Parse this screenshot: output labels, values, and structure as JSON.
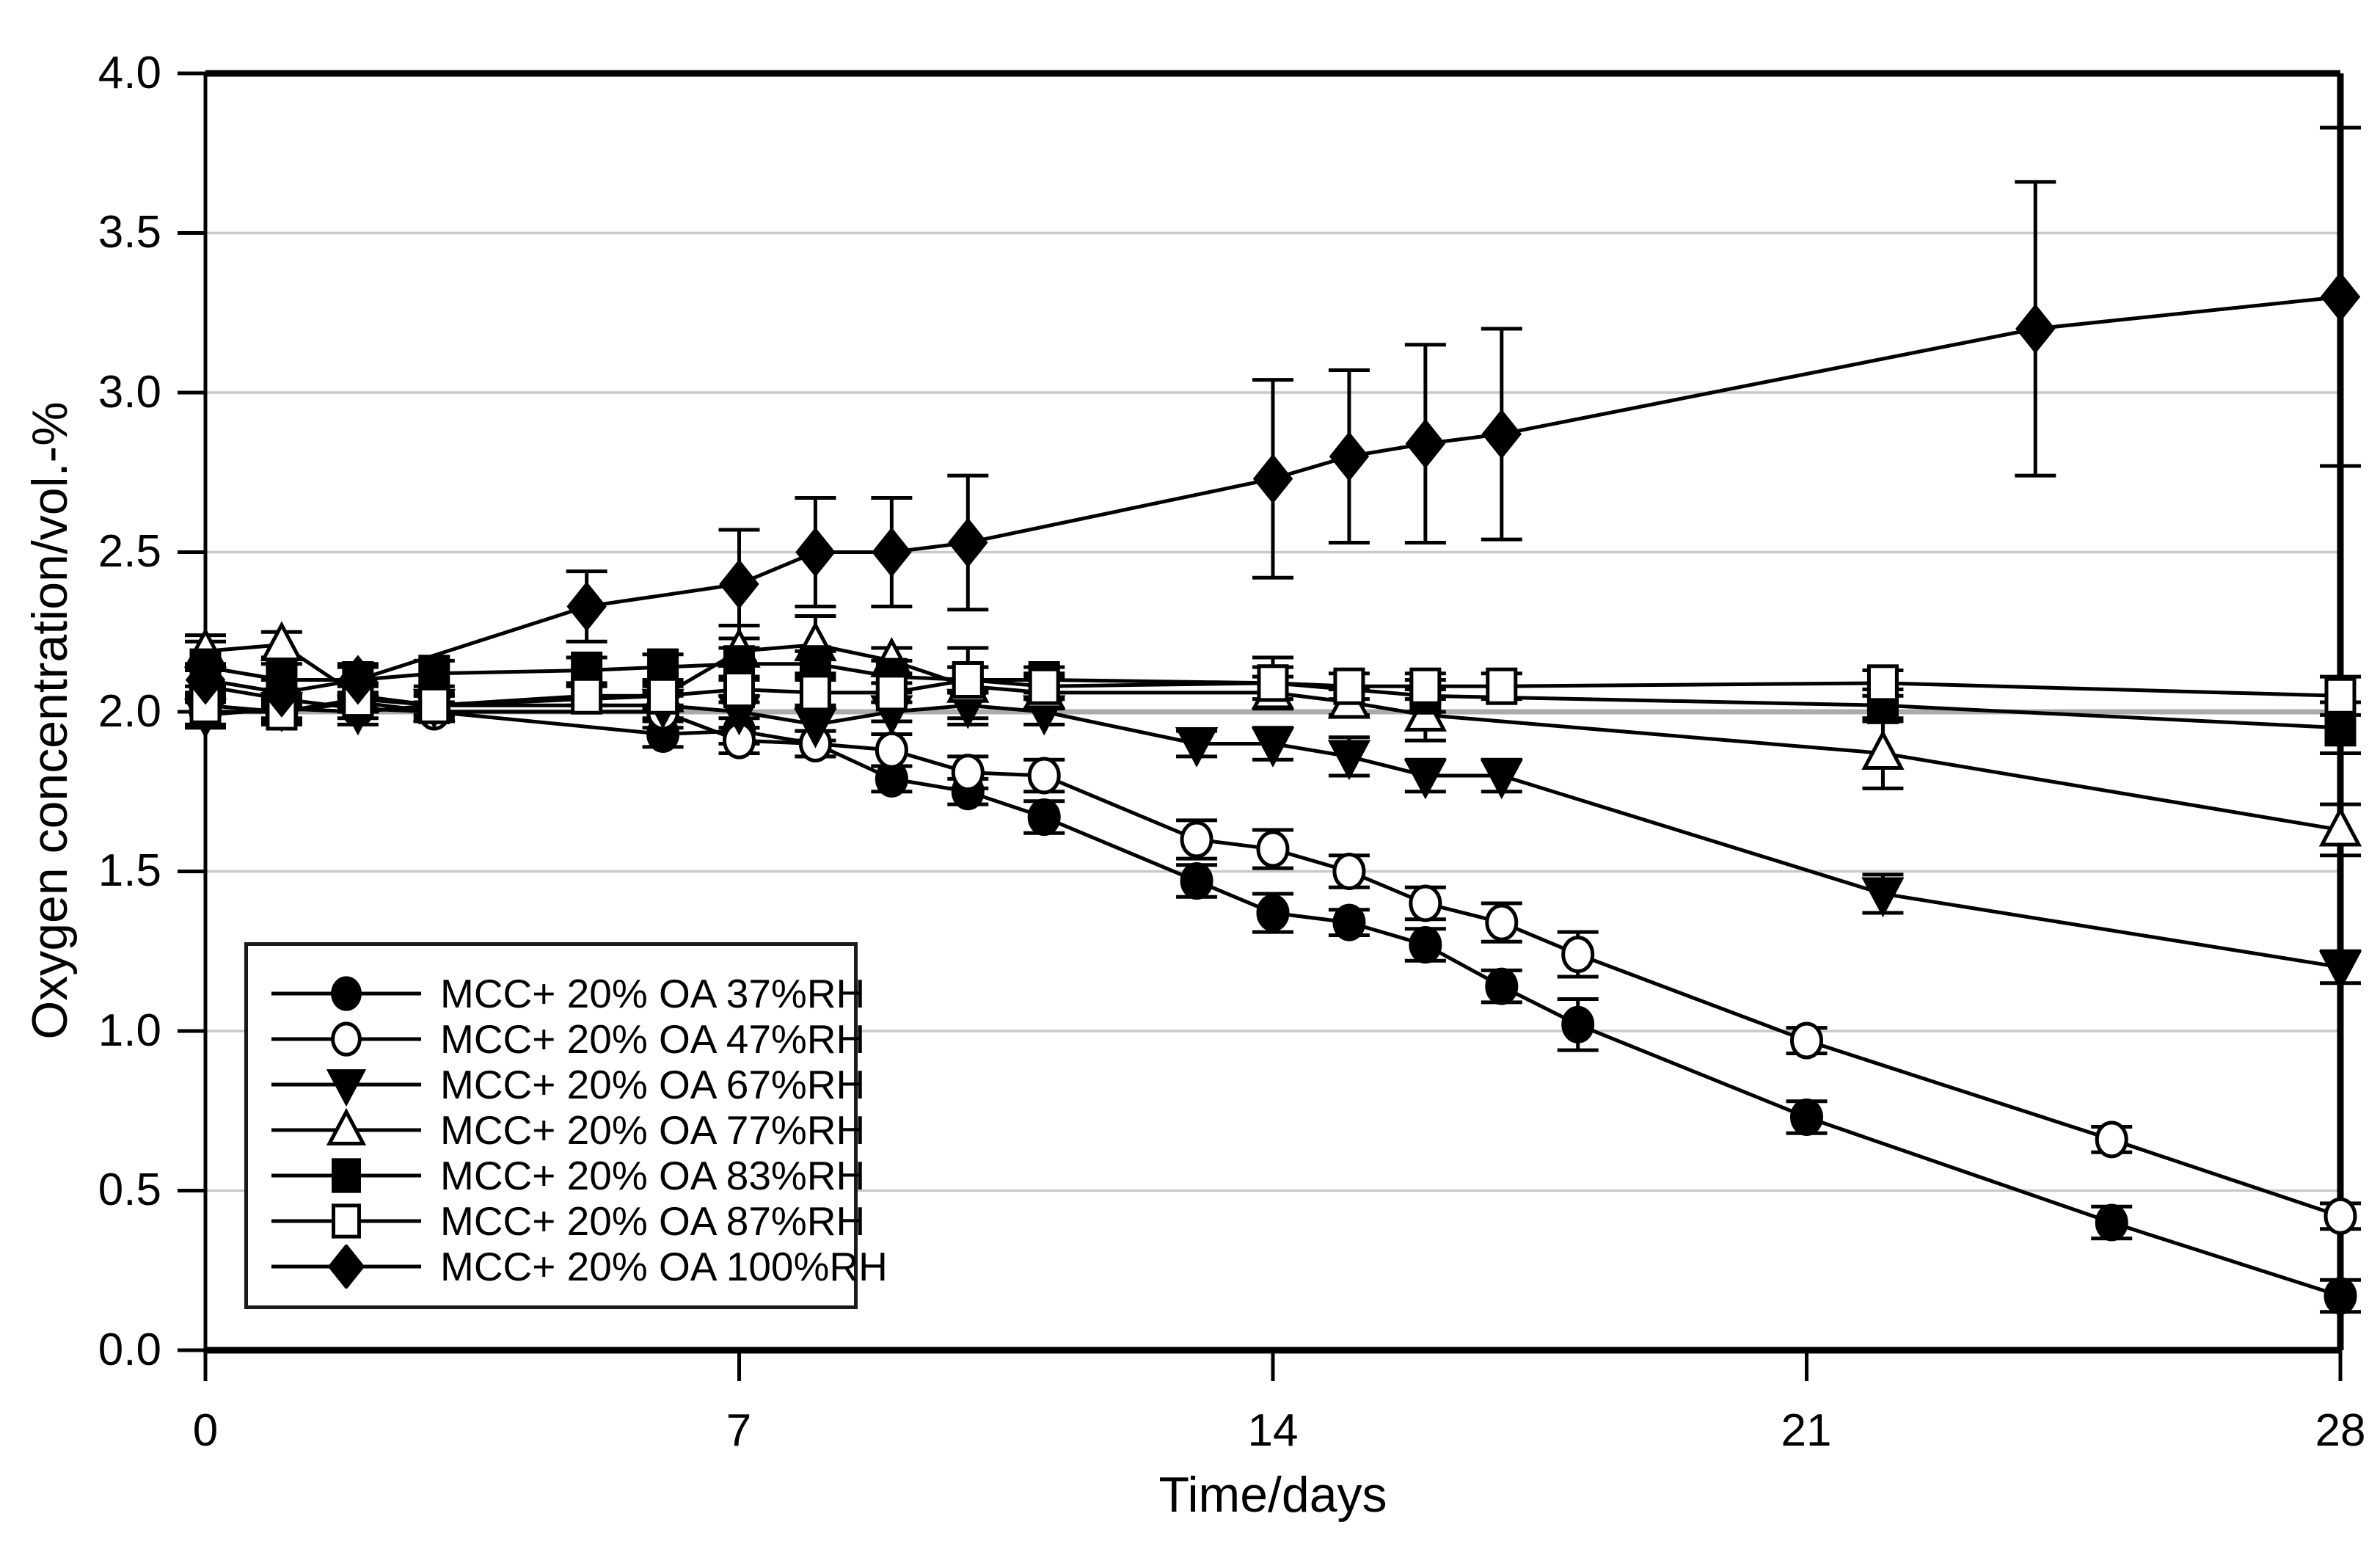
{
  "chart_data": {
    "type": "line",
    "title": "",
    "xlabel": "Time/days",
    "ylabel": "Oxygen concentration/vol.-%",
    "xlim": [
      0,
      28
    ],
    "ylim": [
      0.0,
      4.0
    ],
    "x_ticks": [
      0,
      7,
      14,
      21,
      28
    ],
    "x_tick_labels": [
      "0",
      "7",
      "14",
      "21",
      "28"
    ],
    "y_ticks": [
      4.0,
      3.5,
      3.0,
      2.5,
      2.0,
      1.5,
      1.0,
      0.5,
      0.0
    ],
    "y_tick_labels": [
      "4.0",
      "3.5",
      "3.0",
      "2.5",
      "2.0",
      "1.5",
      "1.0",
      "0.5",
      "0.0"
    ],
    "grid": "horizontal",
    "legend_position": "lower-left",
    "colors": {
      "background": "#ffffff",
      "line": "#000000",
      "text": "#000000",
      "grid": "#c9c9c9",
      "grid_emphasis": "#ababab"
    },
    "series": [
      {
        "name": "MCC+ 20% OA 37%RH",
        "marker": "circle",
        "fill": "filled",
        "x": [
          0,
          1,
          2,
          3,
          6,
          7,
          8,
          9,
          10,
          11,
          13,
          14,
          15,
          16,
          17,
          18,
          21,
          25,
          28
        ],
        "y": [
          2.08,
          2.04,
          2.01,
          2.0,
          1.93,
          1.94,
          1.9,
          1.79,
          1.75,
          1.67,
          1.47,
          1.37,
          1.34,
          1.27,
          1.14,
          1.02,
          0.73,
          0.4,
          0.17
        ],
        "err": [
          0.05,
          0.03,
          0.03,
          0.03,
          0.04,
          0.04,
          0.04,
          0.04,
          0.04,
          0.05,
          0.05,
          0.06,
          0.04,
          0.05,
          0.05,
          0.08,
          0.05,
          0.05,
          0.05
        ]
      },
      {
        "name": "MCC+ 20% OA 47%RH",
        "marker": "circle",
        "fill": "open",
        "x": [
          0,
          1,
          2,
          3,
          6,
          7,
          8,
          9,
          10,
          11,
          13,
          14,
          15,
          16,
          17,
          18,
          21,
          25,
          28
        ],
        "y": [
          2.0,
          2.0,
          2.03,
          2.0,
          2.0,
          1.91,
          1.9,
          1.88,
          1.81,
          1.8,
          1.6,
          1.57,
          1.5,
          1.4,
          1.34,
          1.24,
          0.97,
          0.66,
          0.42
        ],
        "err": [
          0.04,
          0.03,
          0.03,
          0.03,
          0.05,
          0.04,
          0.04,
          0.05,
          0.05,
          0.05,
          0.06,
          0.06,
          0.05,
          0.05,
          0.06,
          0.07,
          0.04,
          0.04,
          0.04
        ]
      },
      {
        "name": "MCC+ 20% OA 67%RH",
        "marker": "triangle-down",
        "fill": "filled",
        "x": [
          0,
          1,
          2,
          3,
          6,
          7,
          8,
          9,
          10,
          11,
          13,
          14,
          15,
          16,
          17,
          22,
          28
        ],
        "y": [
          1.99,
          2.01,
          2.0,
          2.02,
          2.02,
          2.0,
          1.96,
          2.0,
          2.02,
          2.0,
          1.9,
          1.9,
          1.86,
          1.8,
          1.8,
          1.43,
          1.2
        ],
        "err": [
          0.04,
          0.03,
          0.04,
          0.03,
          0.04,
          0.05,
          0.05,
          0.03,
          0.04,
          0.04,
          0.04,
          0.05,
          0.06,
          0.05,
          0.05,
          0.06,
          0.05
        ]
      },
      {
        "name": "MCC+ 20% OA 77%RH",
        "marker": "triangle-up",
        "fill": "open",
        "x": [
          0,
          1,
          2,
          3,
          6,
          7,
          8,
          9,
          10,
          11,
          14,
          15,
          16,
          22,
          28
        ],
        "y": [
          2.19,
          2.21,
          2.05,
          2.02,
          2.05,
          2.19,
          2.21,
          2.16,
          2.08,
          2.06,
          2.06,
          2.03,
          1.99,
          1.87,
          1.63
        ],
        "err": [
          0.05,
          0.04,
          0.04,
          0.03,
          0.04,
          0.08,
          0.09,
          0.04,
          0.12,
          0.05,
          0.05,
          0.04,
          0.08,
          0.11,
          0.08
        ]
      },
      {
        "name": "MCC+ 20% OA 83%RH",
        "marker": "square",
        "fill": "filled",
        "x": [
          0,
          1,
          2,
          3,
          5,
          6,
          7,
          8,
          9,
          10,
          11,
          14,
          16,
          22,
          28
        ],
        "y": [
          2.14,
          2.1,
          2.1,
          2.12,
          2.13,
          2.14,
          2.15,
          2.15,
          2.11,
          2.1,
          2.1,
          2.09,
          2.05,
          2.02,
          1.95
        ],
        "err": [
          0.08,
          0.05,
          0.04,
          0.04,
          0.04,
          0.04,
          0.05,
          0.04,
          0.05,
          0.04,
          0.04,
          0.05,
          0.05,
          0.05,
          0.08
        ]
      },
      {
        "name": "MCC+ 20% OA 87%RH",
        "marker": "square",
        "fill": "open",
        "x": [
          0,
          1,
          2,
          3,
          5,
          6,
          7,
          8,
          9,
          10,
          11,
          14,
          15,
          16,
          17,
          22,
          28
        ],
        "y": [
          2.02,
          2.0,
          2.04,
          2.02,
          2.05,
          2.05,
          2.07,
          2.06,
          2.06,
          2.1,
          2.08,
          2.09,
          2.08,
          2.08,
          2.08,
          2.09,
          2.05
        ],
        "err": [
          0.06,
          0.04,
          0.04,
          0.04,
          0.03,
          0.03,
          0.04,
          0.04,
          0.03,
          0.04,
          0.04,
          0.08,
          0.04,
          0.04,
          0.04,
          0.04,
          0.06
        ]
      },
      {
        "name": "MCC+ 20% OA 100%RH",
        "marker": "diamond",
        "fill": "filled",
        "x": [
          0,
          1,
          2,
          5,
          7,
          8,
          9,
          10,
          14,
          15,
          16,
          17,
          24,
          28
        ],
        "y": [
          2.1,
          2.06,
          2.1,
          2.33,
          2.4,
          2.5,
          2.5,
          2.53,
          2.73,
          2.8,
          2.84,
          2.87,
          3.2,
          3.3
        ],
        "err": [
          0.05,
          0.04,
          0.05,
          0.11,
          0.17,
          0.17,
          0.17,
          0.21,
          0.31,
          0.27,
          0.31,
          0.33,
          0.46,
          0.53
        ]
      }
    ]
  }
}
